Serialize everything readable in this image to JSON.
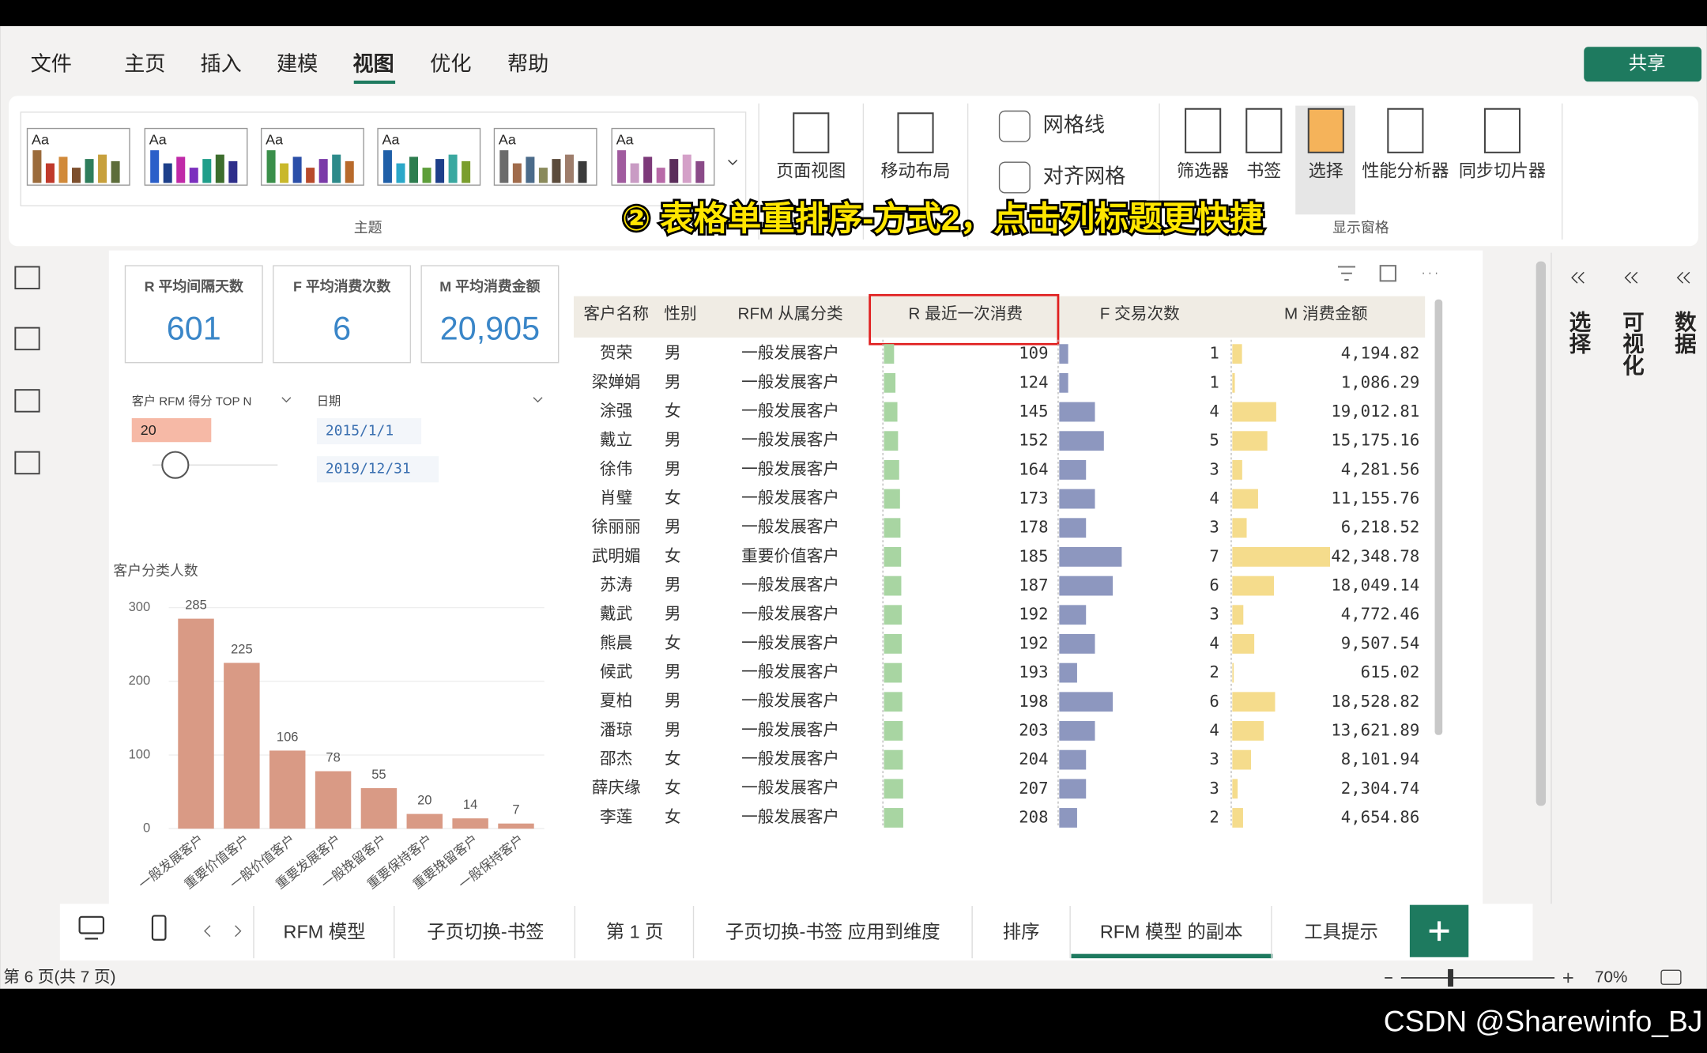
{
  "menu": [
    "文件",
    "主页",
    "插入",
    "建模",
    "视图",
    "优化",
    "帮助"
  ],
  "share": "共享",
  "ribbon": {
    "theme_label": "Aa",
    "theme_group": "主题",
    "layout_buttons": [
      "页面视图",
      "移动布局"
    ],
    "checkboxes": [
      "网格线",
      "对齐网格"
    ],
    "pane_buttons": [
      "筛选器",
      "书签",
      "选择",
      "性能分析器",
      "同步切片器"
    ],
    "pane_group": "显示窗格"
  },
  "caption": "② 表格单重排序-方式2，点击列标题更快捷",
  "side_panes": [
    "选择",
    "可视化",
    "数据"
  ],
  "cards": [
    {
      "label": "R 平均间隔天数",
      "value": "601"
    },
    {
      "label": "F 平均消费次数",
      "value": "6"
    },
    {
      "label": "M 平均消费金额",
      "value": "20,905"
    }
  ],
  "slicers": {
    "topn_label": "客户 RFM 得分 TOP N",
    "topn_value": "20",
    "date_label": "日期",
    "date_start": "2015/1/1",
    "date_end": "2019/12/31"
  },
  "chart": {
    "type": "bar",
    "title": "客户分类人数",
    "categories": [
      "一般发展客户",
      "重要价值客户",
      "一般价值客户",
      "重要发展客户",
      "一般挽留客户",
      "重要保持客户",
      "重要挽留客户",
      "一般保持客户"
    ],
    "values": [
      285,
      225,
      106,
      78,
      55,
      20,
      14,
      7
    ],
    "ylim": [
      0,
      300
    ],
    "yticks": [
      0,
      100,
      200,
      300
    ],
    "color": "#d99a85"
  },
  "table": {
    "columns": [
      "客户名称",
      "性别",
      "RFM 从属分类",
      "R 最近一次消费",
      "F 交易次数",
      "M 消费金额"
    ],
    "rows": [
      [
        "贺荣",
        "男",
        "一般发展客户",
        109,
        1,
        4194.82
      ],
      [
        "梁婵娟",
        "男",
        "一般发展客户",
        124,
        1,
        1086.29
      ],
      [
        "涂强",
        "女",
        "一般发展客户",
        145,
        4,
        19012.81
      ],
      [
        "戴立",
        "男",
        "一般发展客户",
        152,
        5,
        15175.16
      ],
      [
        "徐伟",
        "男",
        "一般发展客户",
        164,
        3,
        4281.56
      ],
      [
        "肖璧",
        "女",
        "一般发展客户",
        173,
        4,
        11155.76
      ],
      [
        "徐丽丽",
        "男",
        "一般发展客户",
        178,
        3,
        6218.52
      ],
      [
        "武明媚",
        "女",
        "重要价值客户",
        185,
        7,
        42348.78
      ],
      [
        "苏涛",
        "男",
        "一般发展客户",
        187,
        6,
        18049.14
      ],
      [
        "戴武",
        "男",
        "一般发展客户",
        192,
        3,
        4772.46
      ],
      [
        "熊晨",
        "女",
        "一般发展客户",
        192,
        4,
        9507.54
      ],
      [
        "候武",
        "男",
        "一般发展客户",
        193,
        2,
        615.02
      ],
      [
        "夏柏",
        "男",
        "一般发展客户",
        198,
        6,
        18528.82
      ],
      [
        "潘琼",
        "男",
        "一般发展客户",
        203,
        4,
        13621.89
      ],
      [
        "邵杰",
        "女",
        "一般发展客户",
        204,
        3,
        8101.94
      ],
      [
        "薛庆缘",
        "女",
        "一般发展客户",
        207,
        3,
        2304.74
      ],
      [
        "李莲",
        "女",
        "一般发展客户",
        208,
        2,
        4654.86
      ]
    ],
    "m_value_labels": [
      "4,194.82",
      "1,086.29",
      "19,012.81",
      "15,175.16",
      "4,281.56",
      "11,155.76",
      "6,218.52",
      "42,348.78",
      "18,049.14",
      "4,772.46",
      "9,507.54",
      "615.02",
      "18,528.82",
      "13,621.89",
      "8,101.94",
      "2,304.74",
      "4,654.86"
    ]
  },
  "page_tabs": [
    "RFM 模型",
    "子页切换-书签",
    "第 1 页",
    "子页切换-书签 应用到维度",
    "排序",
    "RFM 模型 的副本",
    "工具提示"
  ],
  "status": {
    "page": "第 6 页(共 7 页)",
    "zoom": "70%"
  },
  "watermark": "CSDN @Sharewinfo_BJ"
}
